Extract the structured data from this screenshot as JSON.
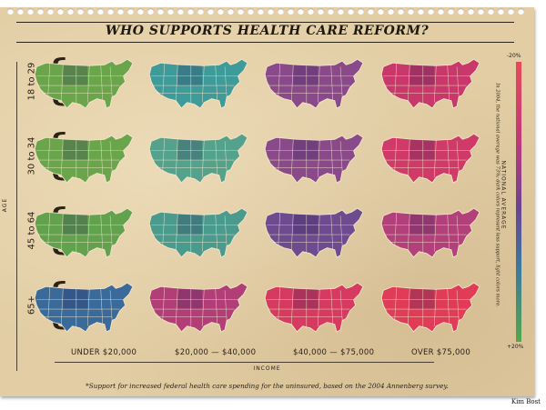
{
  "title": "WHO SUPPORTS HEALTH CARE REFORM?",
  "age_axis_label": "AGE",
  "age_groups": [
    "18 to 29",
    "30 to 34",
    "45 to 64",
    "65+"
  ],
  "income_axis_label": "INCOME",
  "income_groups": [
    "UNDER $20,000",
    "$20,000 — $40,000",
    "$40,000 — $75,000",
    "OVER $75,000"
  ],
  "legend": {
    "title": "NATIONAL AVERAGE",
    "top_value": "-20%",
    "bottom_value": "+20%",
    "note": "In 2004, the national average was 73%; dark colors represent less support, light colors more."
  },
  "footnote": "*Support for increased federal health care spending for the uninsured, based on the 2004 Annenberg survey.",
  "credit": "Kim Bost",
  "map_grid_colors": [
    [
      "#6aa54c",
      "#3f9a9a",
      "#8a4a8a",
      "#c8386a"
    ],
    [
      "#6aa54c",
      "#55a28c",
      "#8a4a8a",
      "#d03a68"
    ],
    [
      "#62a24e",
      "#4a9a8e",
      "#6e4a8e",
      "#b2407a"
    ],
    [
      "#3a6a9a",
      "#b23e78",
      "#d63a60",
      "#e03c58"
    ]
  ]
}
